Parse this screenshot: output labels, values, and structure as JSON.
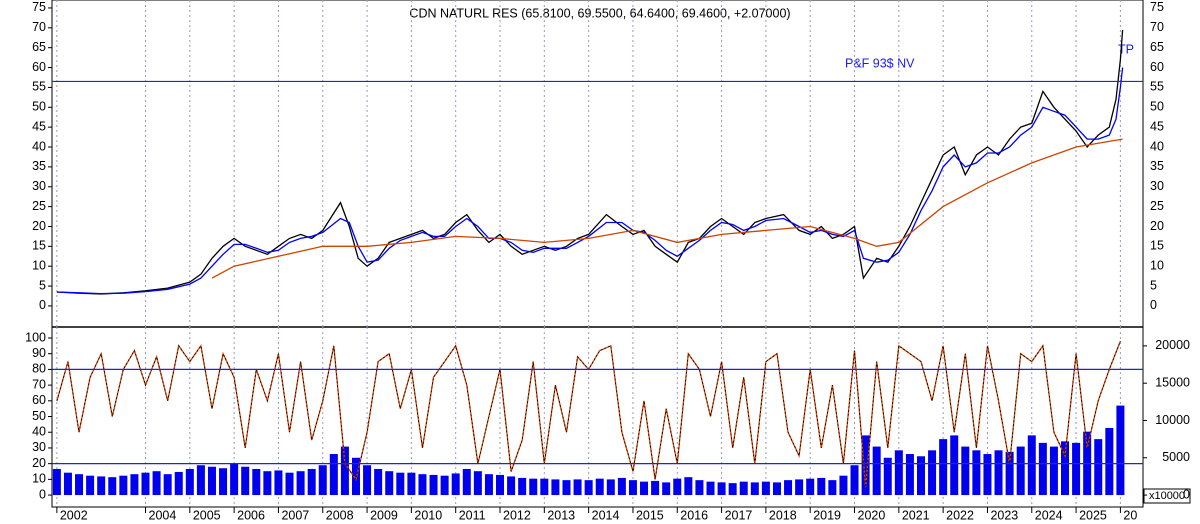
{
  "chart_data": [
    {
      "type": "line",
      "title": "CDN NATURL RES (65.8100, 69.5500, 64.6400, 69.4600, +2.07000)",
      "annotations": [
        "P&F 93$ NV",
        "TP"
      ],
      "ylim": [
        -5.3,
        77
      ],
      "yticks": [
        0,
        5,
        10,
        15,
        20,
        25,
        30,
        35,
        40,
        45,
        50,
        55,
        60,
        65,
        70,
        75
      ],
      "hlines": [
        56.5
      ],
      "grid": true,
      "x": [
        2002,
        2002.5,
        2003,
        2003.5,
        2004,
        2004.5,
        2005,
        2005.25,
        2005.5,
        2005.75,
        2006,
        2006.25,
        2006.5,
        2006.75,
        2007,
        2007.25,
        2007.5,
        2007.75,
        2008,
        2008.4,
        2008.6,
        2008.8,
        2009,
        2009.25,
        2009.5,
        2009.75,
        2010,
        2010.25,
        2010.5,
        2010.75,
        2011,
        2011.25,
        2011.5,
        2011.75,
        2012,
        2012.25,
        2012.5,
        2012.75,
        2013,
        2013.25,
        2013.5,
        2013.75,
        2014,
        2014.4,
        2014.75,
        2015,
        2015.25,
        2015.5,
        2015.75,
        2016,
        2016.25,
        2016.5,
        2016.75,
        2017,
        2017.25,
        2017.5,
        2017.75,
        2018,
        2018.4,
        2018.75,
        2019,
        2019.25,
        2019.5,
        2019.75,
        2020,
        2020.2,
        2020.5,
        2020.75,
        2021,
        2021.25,
        2021.5,
        2021.75,
        2022,
        2022.25,
        2022.5,
        2022.75,
        2023,
        2023.25,
        2023.5,
        2023.75,
        2024,
        2024.25,
        2024.5,
        2024.75,
        2025,
        2025.25,
        2025.5,
        2025.75,
        2025.9,
        2026,
        2026.05
      ],
      "series": [
        {
          "color": "#000000",
          "values": [
            3.5,
            3.2,
            3.0,
            3.3,
            3.8,
            4.5,
            6,
            8,
            12,
            15,
            17,
            15,
            14,
            13,
            15,
            17,
            18,
            17,
            19,
            26,
            20,
            12,
            10,
            12,
            16,
            17,
            18,
            19,
            17,
            18,
            21,
            23,
            19,
            16,
            18,
            15,
            13,
            14,
            15,
            14,
            15,
            17,
            18,
            23,
            20,
            18,
            19,
            15,
            13,
            11,
            16,
            17,
            20,
            22,
            20,
            18,
            21,
            22,
            23,
            19,
            18,
            20,
            17,
            18,
            20,
            7,
            12,
            11,
            15,
            20,
            26,
            32,
            38,
            40,
            33,
            38,
            40,
            38,
            42,
            45,
            46,
            54,
            50,
            47,
            44,
            40,
            43,
            45,
            52,
            62,
            69.46
          ]
        },
        {
          "color": "#0000ff",
          "values": [
            3.5,
            3.3,
            3.1,
            3.2,
            3.6,
            4.2,
            5.5,
            7,
            10,
            13,
            15.5,
            15.5,
            14.5,
            13.5,
            14,
            16,
            17,
            17.5,
            18.5,
            22,
            21,
            15,
            11,
            11.5,
            14.5,
            16.5,
            17.5,
            18.5,
            17.5,
            17.5,
            20,
            22,
            20,
            17,
            17,
            16,
            14,
            13.5,
            14.5,
            14.5,
            14.5,
            16,
            17.5,
            21,
            21,
            19,
            18.5,
            16.5,
            14,
            12.5,
            14.5,
            16.5,
            19,
            21,
            20.5,
            19,
            20,
            21.5,
            22,
            20,
            18.5,
            19,
            18,
            17.5,
            19,
            12,
            11,
            11.5,
            13.5,
            18,
            24,
            29,
            35,
            38,
            35,
            36,
            38.5,
            38.5,
            40,
            43,
            45,
            50,
            49,
            48,
            45,
            42,
            42,
            43,
            47,
            55,
            60
          ]
        },
        {
          "color": "#cc4400",
          "x": [
            2005.5,
            2006,
            2007,
            2008,
            2009,
            2010,
            2011,
            2012,
            2013,
            2014,
            2015,
            2016,
            2017,
            2018,
            2019,
            2020,
            2020.5,
            2021,
            2022,
            2023,
            2024,
            2025,
            2026.05
          ],
          "values": [
            7,
            10,
            12.5,
            15,
            15,
            16,
            17.5,
            17,
            16,
            17,
            19,
            16,
            18,
            19,
            20,
            17,
            15,
            16,
            25,
            31,
            36,
            40,
            42
          ]
        }
      ]
    },
    {
      "type": "bar",
      "xlim": [
        2001.89,
        2026.51
      ],
      "xticks": [
        2002,
        2004,
        2005,
        2006,
        2007,
        2008,
        2009,
        2010,
        2011,
        2012,
        2013,
        2014,
        2015,
        2016,
        2017,
        2018,
        2019,
        2020,
        2021,
        2022,
        2023,
        2024,
        2025,
        {
          "value": 2026,
          "label": "20"
        }
      ],
      "ylim": [
        -7.6,
        107
      ],
      "yticks": [
        0,
        10,
        20,
        30,
        40,
        50,
        60,
        70,
        80,
        90,
        100
      ],
      "y2lim": [
        -1600,
        22533
      ],
      "y2ticks": [
        0,
        5000,
        10000,
        15000,
        20000
      ],
      "y2label": "x10000",
      "hlines": [
        80,
        20
      ],
      "x": [
        2002,
        2002.25,
        2002.5,
        2002.75,
        2003,
        2003.25,
        2003.5,
        2003.75,
        2004,
        2004.25,
        2004.5,
        2004.75,
        2005,
        2005.25,
        2005.5,
        2005.75,
        2006,
        2006.25,
        2006.5,
        2006.75,
        2007,
        2007.25,
        2007.5,
        2007.75,
        2008,
        2008.25,
        2008.5,
        2008.75,
        2009,
        2009.25,
        2009.5,
        2009.75,
        2010,
        2010.25,
        2010.5,
        2010.75,
        2011,
        2011.25,
        2011.5,
        2011.75,
        2012,
        2012.25,
        2012.5,
        2012.75,
        2013,
        2013.25,
        2013.5,
        2013.75,
        2014,
        2014.25,
        2014.5,
        2014.75,
        2015,
        2015.25,
        2015.5,
        2015.75,
        2016,
        2016.25,
        2016.5,
        2016.75,
        2017,
        2017.25,
        2017.5,
        2017.75,
        2018,
        2018.25,
        2018.5,
        2018.75,
        2019,
        2019.25,
        2019.5,
        2019.75,
        2020,
        2020.25,
        2020.5,
        2020.75,
        2021,
        2021.25,
        2021.5,
        2021.75,
        2022,
        2022.25,
        2022.5,
        2022.75,
        2023,
        2023.25,
        2023.5,
        2023.75,
        2024,
        2024.25,
        2024.5,
        2024.75,
        2025,
        2025.25,
        2025.5,
        2025.75,
        2026
      ],
      "series": [
        {
          "type": "bar",
          "axis": "y2",
          "color": "#0000ee",
          "values": [
            3500,
            3000,
            2800,
            2600,
            2500,
            2400,
            2600,
            2800,
            3000,
            3200,
            2800,
            3100,
            3500,
            4000,
            3800,
            3600,
            4200,
            3800,
            3500,
            3200,
            3300,
            3000,
            3200,
            3500,
            4000,
            5500,
            6500,
            5000,
            4000,
            3500,
            3200,
            3000,
            3000,
            2800,
            2700,
            2600,
            2900,
            3500,
            3200,
            2800,
            2700,
            2500,
            2300,
            2200,
            2200,
            2100,
            2000,
            2100,
            2000,
            2200,
            2100,
            2300,
            2000,
            1800,
            1900,
            1700,
            2200,
            2400,
            2000,
            1800,
            1700,
            1600,
            1800,
            1700,
            1800,
            1700,
            2000,
            2100,
            2200,
            2300,
            2000,
            2600,
            4000,
            8000,
            6500,
            5000,
            6000,
            5500,
            5200,
            6000,
            7500,
            8000,
            6500,
            6000,
            5500,
            6000,
            5800,
            6500,
            8000,
            7000,
            6500,
            7200,
            7000,
            8500,
            7500,
            9000,
            12000
          ]
        },
        {
          "type": "line",
          "color": "#dd4400",
          "values": [
            60,
            85,
            40,
            75,
            90,
            50,
            80,
            92,
            70,
            88,
            60,
            95,
            85,
            95,
            55,
            90,
            75,
            30,
            80,
            60,
            90,
            40,
            85,
            35,
            60,
            95,
            20,
            10,
            40,
            85,
            90,
            55,
            80,
            30,
            75,
            85,
            95,
            70,
            20,
            50,
            80,
            15,
            35,
            85,
            20,
            70,
            40,
            88,
            80,
            92,
            95,
            40,
            15,
            60,
            10,
            55,
            20,
            90,
            80,
            50,
            85,
            30,
            75,
            20,
            85,
            90,
            40,
            25,
            80,
            30,
            70,
            20,
            92,
            5,
            85,
            30,
            95,
            90,
            85,
            60,
            95,
            40,
            90,
            30,
            95,
            60,
            20,
            90,
            85,
            95,
            40,
            25,
            90,
            30,
            60,
            80,
            98
          ]
        }
      ]
    }
  ]
}
